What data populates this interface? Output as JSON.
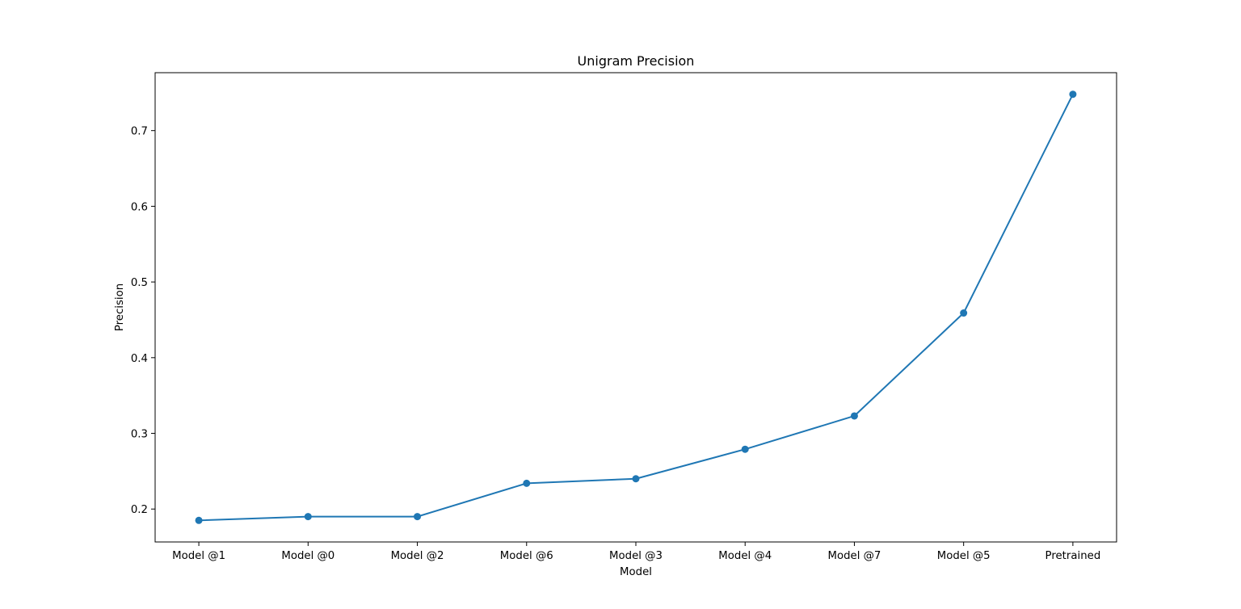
{
  "chart_data": {
    "type": "line",
    "title": "Unigram Precision",
    "xlabel": "Model",
    "ylabel": "Precision",
    "categories": [
      "Model @1",
      "Model @0",
      "Model @2",
      "Model @6",
      "Model @3",
      "Model @4",
      "Model @7",
      "Model @5",
      "Pretrained"
    ],
    "series": [
      {
        "values": [
          0.185,
          0.19,
          0.19,
          0.234,
          0.24,
          0.279,
          0.323,
          0.459,
          0.748
        ],
        "color": "#1f77b4",
        "marker": "circle"
      }
    ],
    "ylim": [
      0.1565,
      0.7765
    ],
    "yticks": [
      0.2,
      0.3,
      0.4,
      0.5,
      0.6,
      0.7
    ],
    "ytick_labels": [
      "0.2",
      "0.3",
      "0.4",
      "0.5",
      "0.6",
      "0.7"
    ],
    "grid": false,
    "legend": "none"
  }
}
